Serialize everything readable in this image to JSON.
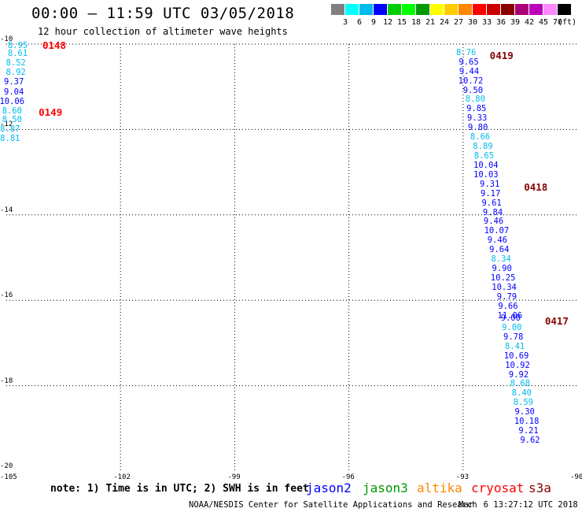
{
  "title": "00:00 – 11:59 UTC 03/05/2018",
  "subtitle": "12 hour collection of altimeter wave heights",
  "legend": {
    "unit": "(ft)",
    "bins": [
      {
        "label": "",
        "color": "#808080"
      },
      {
        "label": "3",
        "color": "#00ffff"
      },
      {
        "label": "6",
        "color": "#00bbee"
      },
      {
        "label": "9",
        "color": "#0000ff"
      },
      {
        "label": "12",
        "color": "#00cc00"
      },
      {
        "label": "15",
        "color": "#00ff00"
      },
      {
        "label": "18",
        "color": "#009900"
      },
      {
        "label": "21",
        "color": "#ffff00"
      },
      {
        "label": "24",
        "color": "#ffcc00"
      },
      {
        "label": "27",
        "color": "#ff8800"
      },
      {
        "label": "30",
        "color": "#ff0000"
      },
      {
        "label": "33",
        "color": "#cc0000"
      },
      {
        "label": "36",
        "color": "#880000"
      },
      {
        "label": "39",
        "color": "#aa0077"
      },
      {
        "label": "42",
        "color": "#bb00bb"
      },
      {
        "label": "45",
        "color": "#ff88ff"
      },
      {
        "label": "70",
        "color": "#000000"
      }
    ]
  },
  "axes": {
    "lon_ticks": [
      -105,
      -102,
      -99,
      -96,
      -93,
      -90
    ],
    "lat_ticks": [
      -10,
      -12,
      -14,
      -16,
      -18,
      -20
    ],
    "lon_range": [
      -105,
      -90
    ],
    "lat_range": [
      -20,
      -10
    ],
    "grid": "dotted"
  },
  "chart_data": {
    "type": "scatter",
    "x_label": "",
    "y_label": "",
    "xlim": [
      -105,
      -90
    ],
    "ylim": [
      -20,
      -10
    ],
    "tracks": [
      {
        "points": [
          {
            "lon": -104.7,
            "lat": -10.03,
            "v": "8.95",
            "c": "#00bbee"
          },
          {
            "lon": -104.7,
            "lat": -10.23,
            "v": "8.61",
            "c": "#00bbee"
          },
          {
            "lon": -104.75,
            "lat": -10.45,
            "v": "8.52",
            "c": "#00bbee"
          },
          {
            "lon": -104.75,
            "lat": -10.67,
            "v": "8.92",
            "c": "#00bbee"
          },
          {
            "lon": -104.8,
            "lat": -10.89,
            "v": "9.37",
            "c": "#0000ff"
          },
          {
            "lon": -104.8,
            "lat": -11.12,
            "v": "9.04",
            "c": "#0000ff"
          },
          {
            "lon": -104.85,
            "lat": -11.34,
            "v": "10.06",
            "c": "#0000ff"
          },
          {
            "lon": -104.85,
            "lat": -11.56,
            "v": "8.60",
            "c": "#00bbee"
          },
          {
            "lon": -104.85,
            "lat": -11.78,
            "v": "8.50",
            "c": "#00bbee"
          },
          {
            "lon": -104.9,
            "lat": -12.0,
            "v": "8.87",
            "c": "#00bbee"
          },
          {
            "lon": -104.9,
            "lat": -12.22,
            "v": "8.81",
            "c": "#00bbee"
          }
        ]
      },
      {
        "points": [
          {
            "lon": -92.92,
            "lat": -10.2,
            "v": "8.76",
            "c": "#00bbee"
          },
          {
            "lon": -92.85,
            "lat": -10.42,
            "v": "9.65",
            "c": "#0000ff"
          },
          {
            "lon": -92.84,
            "lat": -10.64,
            "v": "9.44",
            "c": "#0000ff"
          },
          {
            "lon": -92.8,
            "lat": -10.86,
            "v": "10.72",
            "c": "#0000ff"
          },
          {
            "lon": -92.74,
            "lat": -11.08,
            "v": "9.50",
            "c": "#0000ff"
          },
          {
            "lon": -92.68,
            "lat": -11.3,
            "v": "8.80",
            "c": "#00bbee"
          },
          {
            "lon": -92.65,
            "lat": -11.52,
            "v": "9.85",
            "c": "#0000ff"
          },
          {
            "lon": -92.63,
            "lat": -11.74,
            "v": "9.33",
            "c": "#0000ff"
          },
          {
            "lon": -92.61,
            "lat": -11.96,
            "v": "9.80",
            "c": "#0000ff"
          },
          {
            "lon": -92.55,
            "lat": -12.18,
            "v": "8.66",
            "c": "#00bbee"
          },
          {
            "lon": -92.48,
            "lat": -12.4,
            "v": "8.89",
            "c": "#00bbee"
          },
          {
            "lon": -92.45,
            "lat": -12.62,
            "v": "8.65",
            "c": "#00bbee"
          },
          {
            "lon": -92.4,
            "lat": -12.84,
            "v": "10.04",
            "c": "#0000ff"
          },
          {
            "lon": -92.4,
            "lat": -13.06,
            "v": "10.03",
            "c": "#0000ff"
          },
          {
            "lon": -92.3,
            "lat": -13.28,
            "v": "9.31",
            "c": "#0000ff"
          },
          {
            "lon": -92.28,
            "lat": -13.5,
            "v": "9.17",
            "c": "#0000ff"
          },
          {
            "lon": -92.25,
            "lat": -13.72,
            "v": "9.61",
            "c": "#0000ff"
          },
          {
            "lon": -92.22,
            "lat": -13.94,
            "v": "9.84",
            "c": "#0000ff"
          },
          {
            "lon": -92.2,
            "lat": -14.16,
            "v": "9.46",
            "c": "#0000ff"
          },
          {
            "lon": -92.12,
            "lat": -14.38,
            "v": "10.07",
            "c": "#0000ff"
          },
          {
            "lon": -92.1,
            "lat": -14.6,
            "v": "9.46",
            "c": "#0000ff"
          },
          {
            "lon": -92.05,
            "lat": -14.82,
            "v": "9.64",
            "c": "#0000ff"
          },
          {
            "lon": -92.0,
            "lat": -15.04,
            "v": "8.34",
            "c": "#00bbee"
          },
          {
            "lon": -91.98,
            "lat": -15.26,
            "v": "9.90",
            "c": "#0000ff"
          },
          {
            "lon": -91.95,
            "lat": -15.48,
            "v": "10.25",
            "c": "#0000ff"
          },
          {
            "lon": -91.92,
            "lat": -15.7,
            "v": "10.34",
            "c": "#0000ff"
          },
          {
            "lon": -91.85,
            "lat": -15.92,
            "v": "9.79",
            "c": "#0000ff"
          },
          {
            "lon": -91.82,
            "lat": -16.14,
            "v": "9.66",
            "c": "#0000ff"
          },
          {
            "lon": -91.77,
            "lat": -16.36,
            "v": "11.06",
            "c": "#0000ff"
          },
          {
            "lon": -91.75,
            "lat": -16.42,
            "v": "9.00",
            "c": "#0000ff"
          },
          {
            "lon": -91.72,
            "lat": -16.64,
            "v": "9.00",
            "c": "#00bbee"
          },
          {
            "lon": -91.68,
            "lat": -16.86,
            "v": "9.78",
            "c": "#0000ff"
          },
          {
            "lon": -91.64,
            "lat": -17.08,
            "v": "8.41",
            "c": "#00bbee"
          },
          {
            "lon": -91.6,
            "lat": -17.3,
            "v": "10.69",
            "c": "#0000ff"
          },
          {
            "lon": -91.57,
            "lat": -17.52,
            "v": "10.92",
            "c": "#0000ff"
          },
          {
            "lon": -91.54,
            "lat": -17.74,
            "v": "9.92",
            "c": "#0000ff"
          },
          {
            "lon": -91.5,
            "lat": -17.96,
            "v": "8.68",
            "c": "#00bbee"
          },
          {
            "lon": -91.46,
            "lat": -18.18,
            "v": "8.40",
            "c": "#00bbee"
          },
          {
            "lon": -91.42,
            "lat": -18.4,
            "v": "8.59",
            "c": "#00bbee"
          },
          {
            "lon": -91.38,
            "lat": -18.62,
            "v": "9.30",
            "c": "#0000ff"
          },
          {
            "lon": -91.33,
            "lat": -18.84,
            "v": "10.18",
            "c": "#0000ff"
          },
          {
            "lon": -91.28,
            "lat": -19.06,
            "v": "9.21",
            "c": "#0000ff"
          },
          {
            "lon": -91.24,
            "lat": -19.28,
            "v": "9.62",
            "c": "#0000ff"
          }
        ]
      }
    ],
    "time_labels": [
      {
        "lon": -104.05,
        "lat": -10.04,
        "text": "0148",
        "color": "#ff0000"
      },
      {
        "lon": -104.15,
        "lat": -11.61,
        "text": "0149",
        "color": "#ff0000"
      },
      {
        "lon": -92.3,
        "lat": -10.28,
        "text": "0419",
        "color": "#880000"
      },
      {
        "lon": -91.4,
        "lat": -13.36,
        "text": "0418",
        "color": "#880000"
      },
      {
        "lon": -90.85,
        "lat": -16.49,
        "text": "0417",
        "color": "#880000"
      }
    ]
  },
  "note": "note: 1) Time is in UTC; 2) SWH is in feet",
  "satellites": [
    {
      "name": "jason2",
      "color": "#0000ff"
    },
    {
      "name": "jason3",
      "color": "#009900"
    },
    {
      "name": "altika",
      "color": "#ff8800"
    },
    {
      "name": "cryosat",
      "color": "#ff0000"
    },
    {
      "name": "s3a",
      "color": "#880000"
    }
  ],
  "footer": "NOAA/NESDIS Center for Satellite Applications and Research",
  "footer_time": "Mar  6 13:27:12 UTC 2018"
}
